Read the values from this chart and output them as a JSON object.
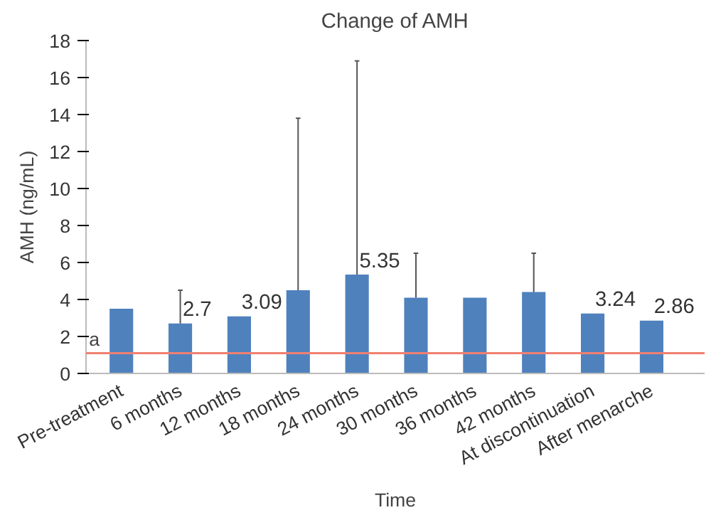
{
  "chart_data": {
    "type": "bar",
    "title": "Change of AMH",
    "xlabel": "Time",
    "ylabel": "AMH (ng/mL)",
    "categories": [
      "Pre-treatment",
      "6 months",
      "12 months",
      "18 months",
      "24 months",
      "30 months",
      "36 months",
      "42 months",
      "At discontinuation",
      "After menarche"
    ],
    "values": [
      3.5,
      2.7,
      3.09,
      4.5,
      5.35,
      4.1,
      4.1,
      4.4,
      3.24,
      2.86
    ],
    "color": "#4f81bd",
    "value_labels": [
      null,
      "2.7",
      "3.09",
      null,
      "5.35",
      null,
      null,
      null,
      "3.24",
      "2.86"
    ],
    "errors": [
      null,
      [
        2.7,
        4.5
      ],
      null,
      [
        4.5,
        13.8
      ],
      [
        5.35,
        16.9
      ],
      [
        4.1,
        6.5
      ],
      null,
      [
        4.4,
        6.5
      ],
      null,
      null
    ],
    "ref_lines": [
      {
        "axis": "y",
        "value": 1.1,
        "label": "a",
        "color": "#f08070"
      }
    ],
    "ylim": [
      0,
      18
    ],
    "yticks": [
      0,
      2,
      4,
      6,
      8,
      10,
      12,
      14,
      16,
      18
    ],
    "grid": false
  }
}
